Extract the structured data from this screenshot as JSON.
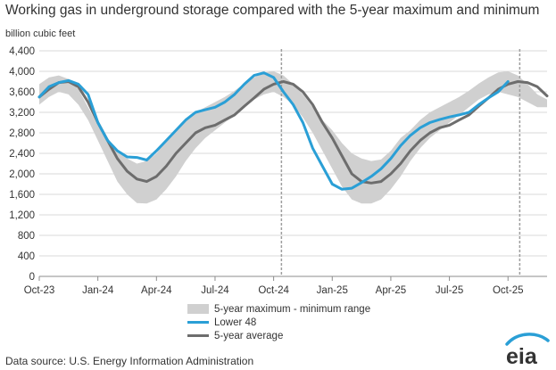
{
  "chart_data": {
    "type": "line",
    "title": "Working gas in underground storage compared with the 5-year maximum and minimum",
    "ylabel": "billion cubic feet",
    "xlabel": "",
    "ylim": [
      0,
      4400
    ],
    "yticks": [
      0,
      400,
      800,
      1200,
      1600,
      2000,
      2400,
      2800,
      3200,
      3600,
      4000,
      4400
    ],
    "ytick_labels": [
      "0",
      "400",
      "800",
      "1,200",
      "1,600",
      "2,000",
      "2,400",
      "2,800",
      "3,200",
      "3,600",
      "4,000",
      "4,400"
    ],
    "xlim_months": [
      0,
      26
    ],
    "xticks": [
      0,
      3,
      6,
      9,
      12,
      15,
      18,
      21,
      24
    ],
    "xtick_labels": [
      "Oct-23",
      "Jan-24",
      "Apr-24",
      "Jul-24",
      "Oct-24",
      "Jan-25",
      "Apr-25",
      "Jul-25",
      "Oct-25"
    ],
    "grid": "horizontal",
    "markers": [
      12.4,
      24.6
    ],
    "legend": [
      "5-year maximum - minimum range",
      "Lower 48",
      "5-year average"
    ],
    "series": [
      {
        "name": "5-year maximum",
        "x": [
          0,
          0.5,
          1,
          1.5,
          2,
          2.5,
          3,
          3.5,
          4,
          4.5,
          5,
          5.5,
          6,
          6.5,
          7,
          7.5,
          8,
          8.5,
          9,
          9.5,
          10,
          10.5,
          11,
          11.5,
          12,
          12.5,
          13,
          13.5,
          14,
          14.5,
          15,
          15.5,
          16,
          16.5,
          17,
          17.5,
          18,
          18.5,
          19,
          19.5,
          20,
          20.5,
          21,
          21.5,
          22,
          22.5,
          23,
          23.5,
          24,
          24.5,
          25,
          25.5,
          26
        ],
        "values": [
          3750,
          3880,
          3920,
          3850,
          3650,
          3300,
          2950,
          2700,
          2450,
          2300,
          2200,
          2250,
          2400,
          2650,
          2850,
          3050,
          3200,
          3300,
          3400,
          3500,
          3620,
          3760,
          3880,
          3980,
          4000,
          3920,
          3750,
          3550,
          3300,
          3050,
          2850,
          2600,
          2400,
          2300,
          2250,
          2280,
          2450,
          2700,
          2850,
          3050,
          3200,
          3300,
          3400,
          3500,
          3620,
          3760,
          3880,
          3980,
          4000,
          3920,
          3750,
          3550,
          3450
        ]
      },
      {
        "name": "5-year minimum",
        "x": [
          0,
          0.5,
          1,
          1.5,
          2,
          2.5,
          3,
          3.5,
          4,
          4.5,
          5,
          5.5,
          6,
          6.5,
          7,
          7.5,
          8,
          8.5,
          9,
          9.5,
          10,
          10.5,
          11,
          11.5,
          12,
          12.5,
          13,
          13.5,
          14,
          14.5,
          15,
          15.5,
          16,
          16.5,
          17,
          17.5,
          18,
          18.5,
          19,
          19.5,
          20,
          20.5,
          21,
          21.5,
          22,
          22.5,
          23,
          23.5,
          24,
          24.5,
          25,
          25.5,
          26
        ],
        "values": [
          3350,
          3500,
          3600,
          3550,
          3350,
          3050,
          2650,
          2250,
          1850,
          1600,
          1430,
          1420,
          1500,
          1700,
          1950,
          2250,
          2500,
          2700,
          2850,
          3000,
          3150,
          3300,
          3450,
          3550,
          3600,
          3500,
          3350,
          3100,
          2800,
          2450,
          2100,
          1750,
          1500,
          1420,
          1420,
          1500,
          1700,
          1950,
          2250,
          2500,
          2700,
          2850,
          3000,
          3150,
          3300,
          3450,
          3550,
          3600,
          3550,
          3500,
          3400,
          3300,
          3300
        ]
      },
      {
        "name": "5-year average",
        "x": [
          0,
          0.5,
          1,
          1.5,
          2,
          2.5,
          3,
          3.5,
          4,
          4.5,
          5,
          5.5,
          6,
          6.5,
          7,
          7.5,
          8,
          8.5,
          9,
          9.5,
          10,
          10.5,
          11,
          11.5,
          12,
          12.5,
          13,
          13.5,
          14,
          14.5,
          15,
          15.5,
          16,
          16.5,
          17,
          17.5,
          18,
          18.5,
          19,
          19.5,
          20,
          20.5,
          21,
          21.5,
          22,
          22.5,
          23,
          23.5,
          24,
          24.5,
          25,
          25.5,
          26
        ],
        "values": [
          3500,
          3650,
          3780,
          3800,
          3700,
          3400,
          3000,
          2650,
          2300,
          2050,
          1900,
          1850,
          1950,
          2150,
          2400,
          2600,
          2800,
          2900,
          2950,
          3050,
          3150,
          3320,
          3480,
          3650,
          3750,
          3800,
          3750,
          3600,
          3350,
          3000,
          2700,
          2350,
          2000,
          1850,
          1820,
          1850,
          2000,
          2200,
          2450,
          2650,
          2800,
          2900,
          2950,
          3050,
          3150,
          3320,
          3480,
          3650,
          3750,
          3800,
          3780,
          3700,
          3520
        ]
      },
      {
        "name": "Lower 48",
        "x": [
          0,
          0.5,
          1,
          1.5,
          2,
          2.5,
          3,
          3.5,
          4,
          4.5,
          5,
          5.5,
          6,
          6.5,
          7,
          7.5,
          8,
          8.5,
          9,
          9.5,
          10,
          10.5,
          11,
          11.5,
          12,
          12.5,
          13,
          13.5,
          14,
          14.5,
          15,
          15.5,
          16,
          16.5,
          17,
          17.5,
          18,
          18.5,
          19,
          19.5,
          20,
          20.5,
          21,
          21.5,
          22,
          22.5,
          23,
          23.5,
          24
        ],
        "values": [
          3500,
          3700,
          3780,
          3820,
          3750,
          3550,
          3000,
          2650,
          2450,
          2330,
          2320,
          2270,
          2450,
          2650,
          2850,
          3050,
          3200,
          3250,
          3300,
          3400,
          3550,
          3750,
          3920,
          3970,
          3880,
          3600,
          3350,
          3000,
          2500,
          2150,
          1800,
          1700,
          1720,
          1830,
          1950,
          2100,
          2300,
          2550,
          2750,
          2900,
          3000,
          3060,
          3110,
          3150,
          3200,
          3350,
          3480,
          3600,
          3800
        ]
      }
    ]
  },
  "legend": {
    "range_label": "5-year maximum - minimum range",
    "l48_label": "Lower 48",
    "avg_label": "5-year average"
  },
  "footer": {
    "source": "Data source:  U.S. Energy Information Administration",
    "logo_text": "eia"
  },
  "colors": {
    "range": "#d0d0d0",
    "lower48": "#2a9fd6",
    "average": "#6d6d6d",
    "grid": "#d9d9d9",
    "marker": "#9e9e9e"
  }
}
